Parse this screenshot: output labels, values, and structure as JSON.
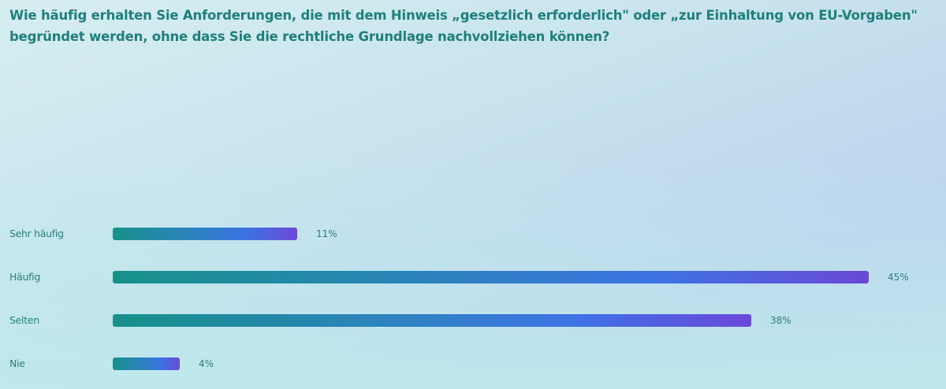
{
  "chart_data": {
    "type": "bar",
    "orientation": "horizontal",
    "title": "Wie häufig erhalten Sie Anforderungen, die mit dem Hinweis „gesetzlich erforderlich\" oder „zur Einhaltung von EU-Vorgaben\" begründet werden, ohne dass Sie die rechtliche Grundlage nachvollziehen können?",
    "categories": [
      "Sehr häufig",
      "Häufig",
      "Selten",
      "Nie"
    ],
    "values": [
      11,
      45,
      38,
      4
    ],
    "value_labels": [
      "11%",
      "45%",
      "38%",
      "4%"
    ],
    "xlabel": "",
    "ylabel": "",
    "xlim": [
      0,
      45
    ],
    "grid": false,
    "colors": {
      "bar_start": "#17918a",
      "bar_mid": "#3d73e4",
      "bar_end": "#6b48d8",
      "text": "#1f7f7c"
    }
  }
}
